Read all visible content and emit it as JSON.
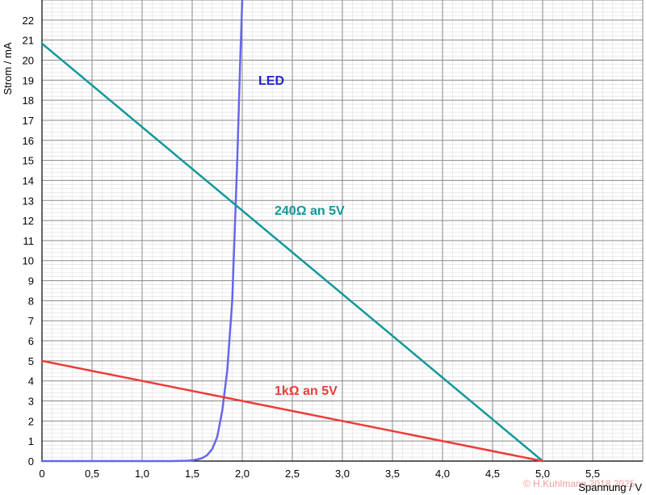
{
  "chart_data": {
    "type": "line",
    "xlabel": "Spannung / V",
    "ylabel": "Strom / mA",
    "xlim": [
      0,
      6
    ],
    "ylim": [
      0,
      23
    ],
    "grid": true,
    "x_tick_labels": [
      "0",
      "0,5",
      "1,0",
      "1,5",
      "2,0",
      "2,5",
      "3,0",
      "3,5",
      "4,0",
      "4,5",
      "5,0",
      "5,5"
    ],
    "y_tick_labels": [
      "0",
      "1",
      "2",
      "3",
      "4",
      "5",
      "6",
      "7",
      "8",
      "9",
      "10",
      "11",
      "12",
      "13",
      "14",
      "15",
      "16",
      "17",
      "18",
      "19",
      "20",
      "21",
      "22"
    ],
    "series": [
      {
        "name": "LED",
        "color": "#6666ee",
        "x": [
          0,
          1.3,
          1.45,
          1.5,
          1.55,
          1.6,
          1.65,
          1.7,
          1.75,
          1.8,
          1.85,
          1.9,
          1.95,
          1.98,
          2.0
        ],
        "y": [
          0,
          0,
          0.02,
          0.04,
          0.08,
          0.15,
          0.3,
          0.6,
          1.2,
          2.5,
          4.5,
          8,
          15,
          20,
          23
        ]
      },
      {
        "name": "240Ω an 5V",
        "color": "#119999",
        "x": [
          0,
          5
        ],
        "y": [
          20.83,
          0
        ]
      },
      {
        "name": "1kΩ an 5V",
        "color": "#ee3b3b",
        "x": [
          0,
          5
        ],
        "y": [
          5,
          0
        ]
      }
    ],
    "copyright": "© H.Kuhlmann 2018 2025"
  }
}
